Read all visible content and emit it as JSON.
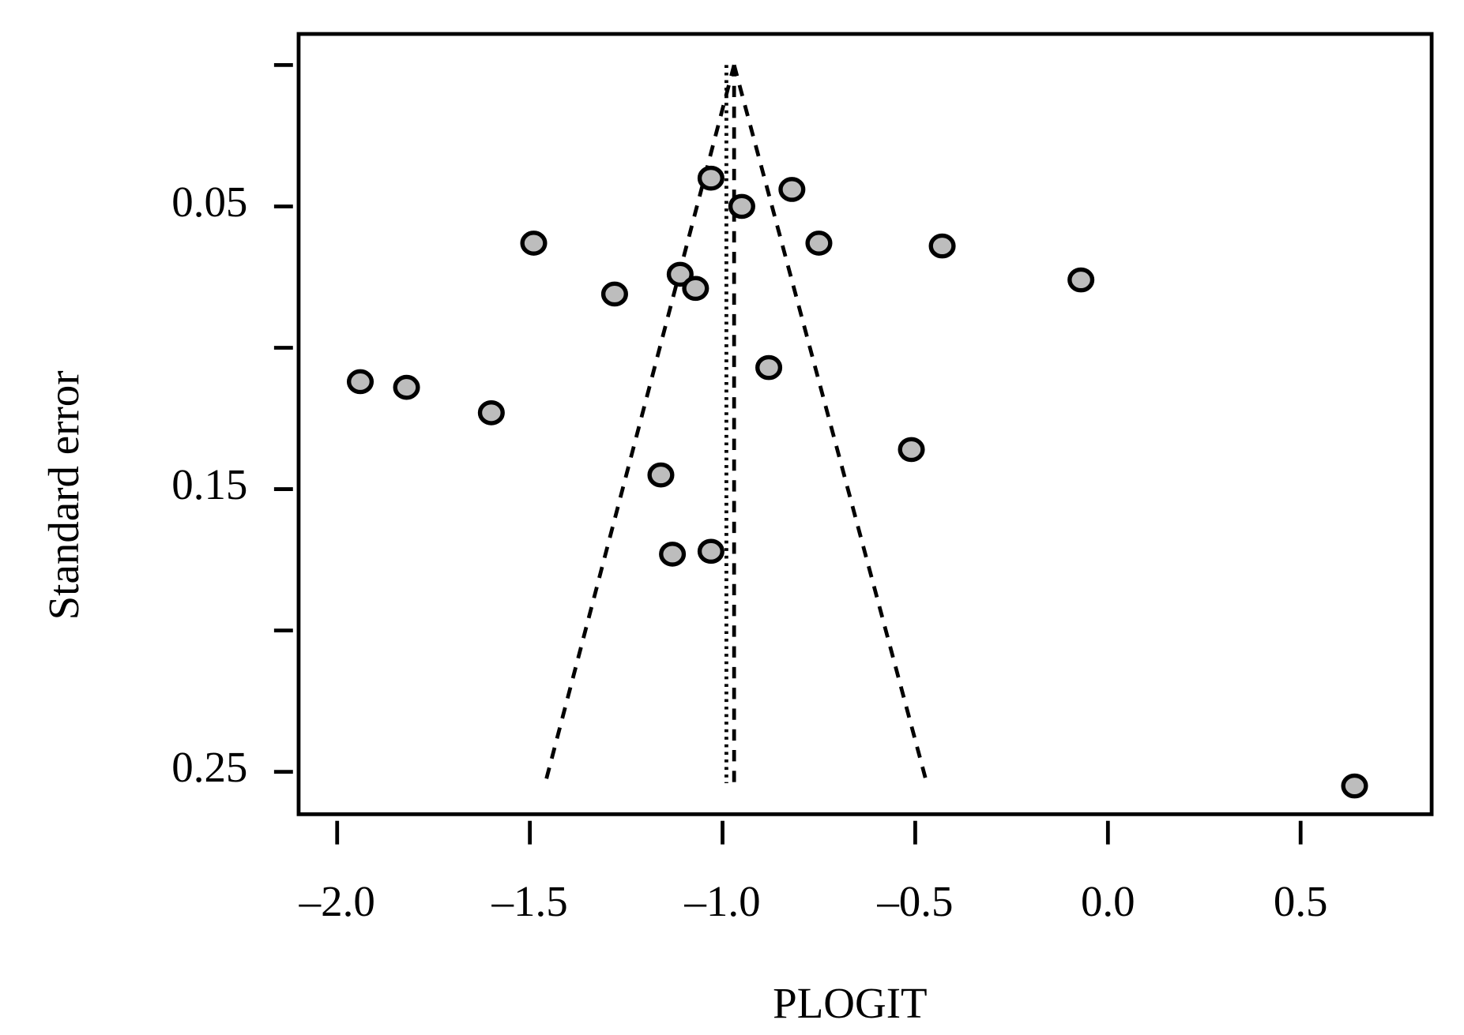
{
  "chart_data": {
    "type": "scatter",
    "xlabel": "PLOGIT",
    "ylabel": "Standard error",
    "x": [
      -1.03,
      -0.82,
      -0.95,
      -1.49,
      -0.75,
      -0.43,
      -1.11,
      -0.07,
      -1.07,
      -1.28,
      -0.88,
      -1.94,
      -1.82,
      -1.6,
      -0.51,
      -1.16,
      -1.03,
      -1.13,
      0.64
    ],
    "values": [
      0.04,
      0.044,
      0.05,
      0.063,
      0.063,
      0.064,
      0.074,
      0.076,
      0.079,
      0.081,
      0.107,
      0.112,
      0.114,
      0.123,
      0.136,
      0.145,
      0.172,
      0.173,
      0.255
    ],
    "color": "#bdbdbd",
    "xlim": [
      -2.1,
      0.84
    ],
    "ylim": [
      -0.011,
      0.265
    ],
    "invert_y": true,
    "xticks": [
      {
        "value": -2.0,
        "label": "–2.0"
      },
      {
        "value": -1.5,
        "label": "–1.5"
      },
      {
        "value": -1.0,
        "label": "–1.0"
      },
      {
        "value": -0.5,
        "label": "–0.5"
      },
      {
        "value": 0.0,
        "label": "0.0"
      },
      0.5
    ],
    "yticks": [
      0.05,
      0.15,
      0.25
    ],
    "minor_yticks": [
      0,
      0.1,
      0.2
    ],
    "lines": [
      {
        "style": "dashed",
        "x": [
          -0.97,
          -1.46
        ],
        "y": [
          0,
          0.254
        ]
      },
      {
        "style": "dashed",
        "x": [
          -0.97,
          -0.47
        ],
        "y": [
          0,
          0.254
        ]
      },
      {
        "style": "dashed",
        "x": [
          -0.97,
          -0.97
        ],
        "y": [
          0,
          0.254
        ]
      },
      {
        "style": "dotted",
        "x": [
          -0.99,
          -0.99
        ],
        "y": [
          0,
          0.254
        ]
      }
    ]
  }
}
